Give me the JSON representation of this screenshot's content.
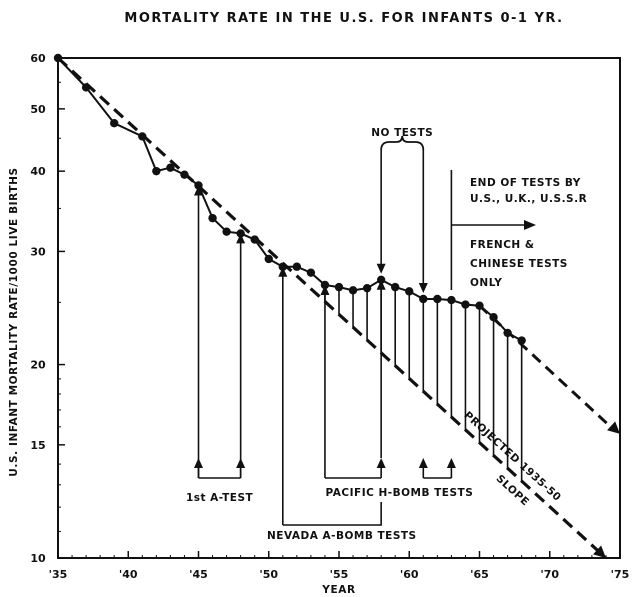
{
  "chart_data": {
    "type": "line",
    "title": "MORTALITY RATE  IN THE U.S. FOR INFANTS 0-1 YR.",
    "xlabel": "YEAR",
    "ylabel": "U.S. INFANT MORTALITY RATE/1000 LIVE BIRTHS",
    "xlim": [
      1935,
      1975
    ],
    "ylim": [
      10,
      60
    ],
    "yscale": "log",
    "x_ticks": [
      1935,
      1940,
      1945,
      1950,
      1955,
      1960,
      1965,
      1970,
      1975
    ],
    "x_tick_labels": [
      "'35",
      "'40",
      "'45",
      "'50",
      "'55",
      "'60",
      "'65",
      "'70",
      "'75"
    ],
    "y_ticks": [
      10,
      15,
      20,
      30,
      40,
      50,
      60
    ],
    "y_tick_labels": [
      "10",
      "15",
      "20",
      "30",
      "40",
      "50",
      "60"
    ],
    "series": [
      {
        "name": "Observed infant mortality rate",
        "style": "solid-with-dots",
        "x": [
          1935,
          1937,
          1939,
          1941,
          1942,
          1943,
          1944,
          1945,
          1946,
          1947,
          1948,
          1949,
          1950,
          1951,
          1952,
          1953,
          1954,
          1955,
          1956,
          1957,
          1958,
          1959,
          1960,
          1961,
          1962,
          1963,
          1964,
          1965,
          1966,
          1967,
          1968
        ],
        "y": [
          60.0,
          54.0,
          47.5,
          45.3,
          40.0,
          40.5,
          39.5,
          38.0,
          33.8,
          32.2,
          32.0,
          31.3,
          29.2,
          28.4,
          28.4,
          27.8,
          26.6,
          26.4,
          26.1,
          26.3,
          27.1,
          26.4,
          26.0,
          25.3,
          25.3,
          25.2,
          24.8,
          24.7,
          23.7,
          22.4,
          21.8
        ]
      },
      {
        "name": "Projected 1935-50 slope",
        "style": "dashed",
        "x": [
          1935,
          1974
        ],
        "y": [
          60.0,
          10.0
        ]
      }
    ],
    "annotations": [
      {
        "text": "PROJECTED 1935-50",
        "anchor": "along dashed line"
      },
      {
        "text": "SLOPE",
        "anchor": "along dashed line"
      },
      {
        "text": "NO TESTS",
        "years": [
          1958,
          1961
        ]
      },
      {
        "text": "END OF TESTS BY",
        "year": 1963
      },
      {
        "text": "U.S., U.K., U.S.S.R",
        "year": 1963
      },
      {
        "text": "FRENCH &",
        "year": 1963
      },
      {
        "text": "CHINESE TESTS",
        "year": 1963
      },
      {
        "text": "ONLY",
        "year": 1963
      },
      {
        "text": "1st A-TEST",
        "years": [
          1945,
          1948
        ]
      },
      {
        "text": "PACIFIC H-BOMB TESTS",
        "years": [
          1954,
          1958,
          1961,
          1963
        ]
      },
      {
        "text": "NEVADA A-BOMB TESTS",
        "years": [
          1951,
          1958
        ]
      }
    ],
    "excess_hatch_years": [
      1954,
      1955,
      1956,
      1957,
      1958,
      1959,
      1960,
      1961,
      1962,
      1963,
      1964,
      1965,
      1966,
      1967,
      1968
    ]
  }
}
